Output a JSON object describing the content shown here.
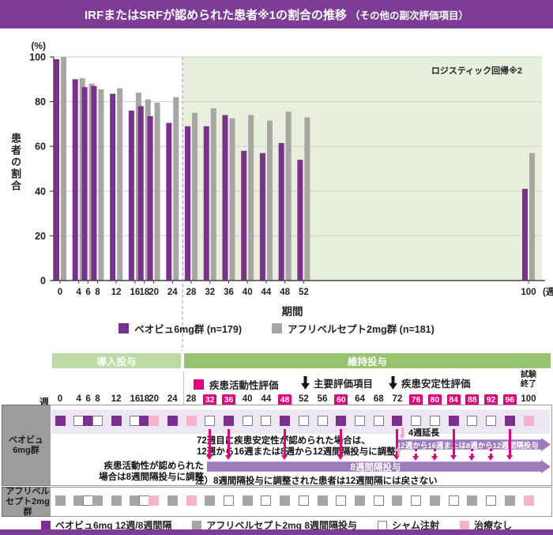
{
  "title": {
    "main": "IRFまたはSRFが認められた患者※1の割合の推移",
    "sub": "（その他の副次評価項目）"
  },
  "colors": {
    "brand_purple": "#7d3c96",
    "bar_purple": "#7b2f8e",
    "bar_gray": "#a7a6a3",
    "plot_shade_green": "#e8efdc",
    "induction_band_green": "#bdd9a4",
    "maintenance_band_green": "#94c46e",
    "magenta": "#e4007f",
    "light_pink": "#f2a6c0",
    "arrow_purple": "#9d7bbd",
    "row_strip_lavender": "#ede6f3",
    "none_pink": "#f4b3ca",
    "label_cell_gray": "#9d9d9d"
  },
  "chart_data": {
    "type": "bar",
    "title": "IRFまたはSRFが認められた患者の割合の推移（その他の副次評価項目）",
    "ylabel": "患者の割合",
    "y_unit": "(%)",
    "xlabel": "期間",
    "x_unit": "(週)",
    "ylim": [
      0,
      100
    ],
    "yticks": [
      0,
      20,
      40,
      60,
      80,
      100
    ],
    "grid": true,
    "legend_position": "bottom",
    "shaded_region_weeks": [
      26,
      104
    ],
    "right_note": "ロジスティック回帰※2",
    "categories": [
      0,
      4,
      6,
      8,
      12,
      16,
      18,
      20,
      24,
      28,
      32,
      36,
      40,
      44,
      48,
      52,
      100
    ],
    "series": [
      {
        "name": "ベオビュ6mg群 (n=179)",
        "color": "#7b2f8e",
        "values": [
          99,
          90,
          86.5,
          87,
          83.5,
          76,
          78,
          73.5,
          70.5,
          69,
          69,
          74,
          58,
          57,
          61.5,
          54,
          41
        ]
      },
      {
        "name": "アフリベルセプト2mg群 (n=181)",
        "color": "#a7a6a3",
        "values": [
          100,
          90.5,
          88,
          85.5,
          86,
          84,
          81,
          79.5,
          82,
          75,
          77,
          72.5,
          74,
          71.5,
          75.5,
          73,
          57
        ]
      }
    ]
  },
  "schedule": {
    "week_axis_label": "週",
    "phases": [
      {
        "label": "導入投与",
        "from_week": 0,
        "to_week": 24
      },
      {
        "label": "維持投与",
        "from_week": 28,
        "to_week": 100
      }
    ],
    "assessment_legend": [
      {
        "icon": "pink-square",
        "label": "疾患活動性評価"
      },
      {
        "icon": "black-down-arrow",
        "label": "主要評価項目"
      },
      {
        "icon": "black-down-arrow",
        "label": "疾患安定性評価"
      }
    ],
    "trial_end_lines": [
      "試験",
      "終了"
    ],
    "weeks": [
      0,
      4,
      6,
      8,
      12,
      16,
      18,
      20,
      24,
      28,
      32,
      36,
      40,
      44,
      48,
      52,
      56,
      60,
      64,
      68,
      72,
      76,
      80,
      84,
      88,
      92,
      96,
      100
    ],
    "highlighted_weeks": [
      32,
      36,
      48,
      60,
      76,
      80,
      84,
      88,
      92,
      96
    ],
    "rows": [
      {
        "label": "ベオビュ6mg群",
        "cells": [
          "active",
          "sham",
          "active",
          "sham",
          "active",
          "sham",
          "active",
          "none",
          "active",
          "none",
          "sham",
          "active",
          "sham",
          "sham",
          "active",
          "sham",
          "sham",
          "active",
          "sham",
          "sham",
          "active",
          "sham",
          "sham",
          "active",
          "sham",
          "sham",
          "active",
          "none"
        ]
      },
      {
        "label": "アフリベルセプト2mg群",
        "cells": [
          "comparator",
          "comparator",
          "sham",
          "comparator",
          "comparator",
          "comparator",
          "sham",
          "none",
          "comparator",
          "none",
          "comparator",
          "sham",
          "comparator",
          "sham",
          "comparator",
          "sham",
          "comparator",
          "sham",
          "comparator",
          "sham",
          "comparator",
          "sham",
          "comparator",
          "sham",
          "comparator",
          "sham",
          "comparator",
          "none"
        ]
      }
    ],
    "annotations": {
      "disease_activity_note_lines": [
        "疾患活動性が認められた",
        "場合は8週間隔投与に調整"
      ],
      "week72_note_lines": [
        "72週目に疾患安定性が認められた場合は、",
        "12週から16週または8週から12週間隔投与に調整"
      ],
      "extension_label": "4週延長",
      "interval_arrow_top_label": "12週から16週または8週から12週間隔投与",
      "interval_arrow_bottom_label": "8週間隔投与",
      "footnote": "注）8週間隔投与に調整された患者は12週間隔には戻さない",
      "solid_arrow_weeks": [
        32,
        36,
        48,
        60,
        72,
        84,
        96
      ],
      "dashed_arrow_weeks": [
        76,
        80,
        88,
        92
      ]
    }
  },
  "bottom_legend": [
    {
      "swatch": "active",
      "label": "ベオビュ6mg 12週/8週間隔"
    },
    {
      "swatch": "comparator",
      "label": "アフリベルセプト2mg 8週間隔投与"
    },
    {
      "swatch": "sham",
      "label": "シャム注射"
    },
    {
      "swatch": "none",
      "label": "治療なし"
    }
  ]
}
